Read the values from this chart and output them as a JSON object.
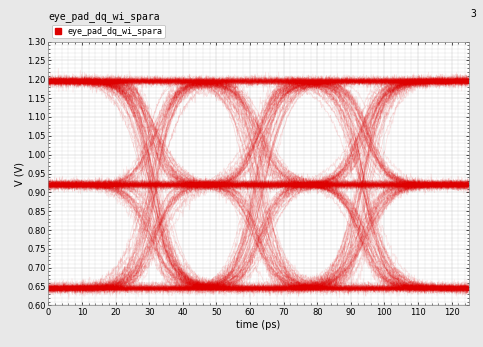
{
  "title": "eye_pad_dq_wi_spara",
  "page_num": "3",
  "legend_label": "eye_pad_dq_wi_spara",
  "xlabel": "time (ps)",
  "ylabel": "V (V)",
  "xlim": [
    0.0,
    125.0
  ],
  "ylim": [
    0.6,
    1.3
  ],
  "xticks": [
    0.0,
    10.0,
    20.0,
    30.0,
    40.0,
    50.0,
    60.0,
    70.0,
    80.0,
    90.0,
    100.0,
    110.0,
    120.0
  ],
  "yticks": [
    0.6,
    0.65,
    0.7,
    0.75,
    0.8,
    0.85,
    0.9,
    0.95,
    1.0,
    1.05,
    1.1,
    1.15,
    1.2,
    1.25,
    1.3
  ],
  "line_color": "#dd0000",
  "bg_color": "#e8e8e8",
  "plot_bg": "#ffffff",
  "grid_color": "#c8c8c8",
  "ui_period": 62.5,
  "levels": [
    0.645,
    0.92,
    1.195
  ],
  "num_traces": 200,
  "alpha": 0.12,
  "linewidth": 0.55,
  "title_fontsize": 7,
  "label_fontsize": 7,
  "tick_fontsize": 6,
  "rise_time_mean": 14.0,
  "rise_time_std": 2.5,
  "jitter_std": 1.2,
  "noise_std": 0.003
}
